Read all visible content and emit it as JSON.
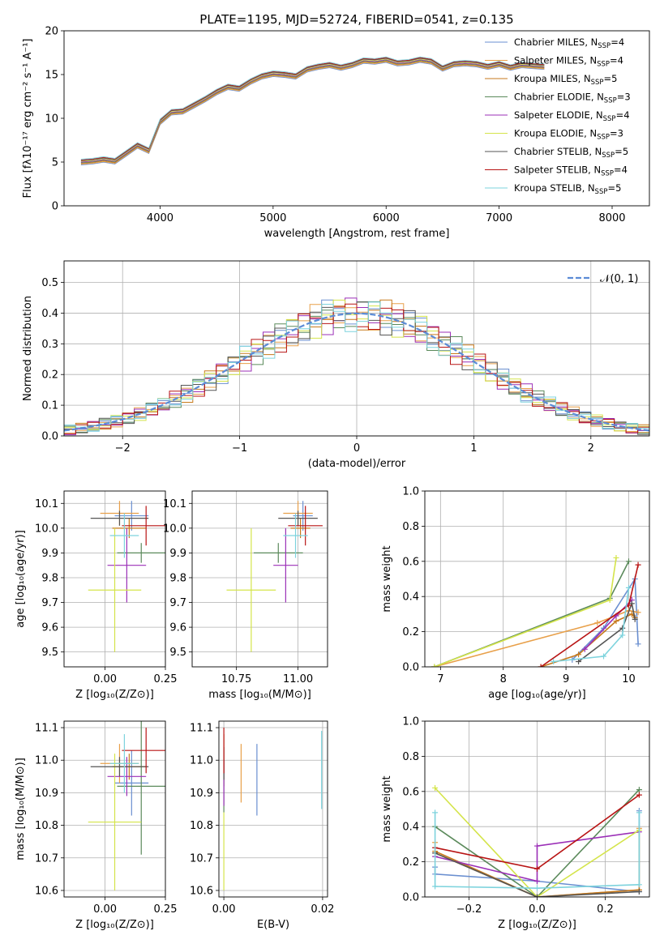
{
  "figure": {
    "title": "PLATE=1195, MJD=52724, FIBERID=0541, z=0.135"
  },
  "series_styles": [
    {
      "name": "Chabrier MILES",
      "nssp": "4",
      "color": "#6a8fd0"
    },
    {
      "name": "Salpeter MILES",
      "nssp": "4",
      "color": "#e8a04a"
    },
    {
      "name": "Kroupa MILES",
      "nssp": "5",
      "color": "#c77a1c"
    },
    {
      "name": "Chabrier ELODIE",
      "nssp": "3",
      "color": "#5b8a5b"
    },
    {
      "name": "Salpeter ELODIE",
      "nssp": "4",
      "color": "#9b2fb7"
    },
    {
      "name": "Kroupa ELODIE",
      "nssp": "3",
      "color": "#d4e44a"
    },
    {
      "name": "Chabrier STELIB",
      "nssp": "5",
      "color": "#555555"
    },
    {
      "name": "Salpeter STELIB",
      "nssp": "4",
      "color": "#b81414"
    },
    {
      "name": "Kroupa STELIB",
      "nssp": "5",
      "color": "#7dd3dd"
    }
  ],
  "legend_sub": "SSP",
  "legend_prefix": "N",
  "legend_eq": "=",
  "chart_data": [
    {
      "id": "spectrum",
      "type": "line",
      "xlabel": "wavelength [Angstrom, rest frame]",
      "ylabel": "Flux [fλ10⁻¹⁷ erg cm⁻² s⁻¹ A⁻¹]",
      "xlim": [
        3150,
        8330
      ],
      "ylim": [
        0,
        20
      ],
      "xticks": [
        "4000",
        "5000",
        "6000",
        "7000",
        "8000"
      ],
      "yticks": [
        "0",
        "5",
        "10",
        "15",
        "20"
      ],
      "legend": "upper right",
      "data_color": "#7f7f7f",
      "data_x": [
        3300,
        3400,
        3500,
        3600,
        3700,
        3800,
        3900,
        4000,
        4100,
        4200,
        4300,
        4400,
        4500,
        4600,
        4700,
        4800,
        4900,
        5000,
        5100,
        5200,
        5300,
        5400,
        5500,
        5600,
        5700,
        5800,
        5900,
        6000,
        6100,
        6200,
        6300,
        6400,
        6500,
        6600,
        6700,
        6800,
        6900,
        7000,
        7100,
        7200,
        7300,
        7400
      ],
      "data_y": [
        5.0,
        5.2,
        5.4,
        5.2,
        6.3,
        7.2,
        6.5,
        9.8,
        10.9,
        11.0,
        11.7,
        12.4,
        13.2,
        13.8,
        13.6,
        14.4,
        15.0,
        15.3,
        15.2,
        15.0,
        15.8,
        16.1,
        16.3,
        16.0,
        16.3,
        16.8,
        16.7,
        16.9,
        16.5,
        16.6,
        16.9,
        16.7,
        15.9,
        16.4,
        16.5,
        16.4,
        16.1,
        16.4,
        16.0,
        16.3,
        16.2,
        16.1
      ],
      "model_x": [
        3300,
        3400,
        3500,
        3600,
        3700,
        3800,
        3900,
        4000,
        4100,
        4200,
        4300,
        4400,
        4500,
        4600,
        4700,
        4800,
        4900,
        5000,
        5100,
        5200,
        5300,
        5400,
        5500,
        5600,
        5700,
        5800,
        5900,
        6000,
        6100,
        6200,
        6300,
        6400,
        6500,
        6600,
        6700,
        6800,
        6900,
        7000,
        7100,
        7200,
        7300,
        7400
      ],
      "model_y": [
        5.0,
        5.1,
        5.3,
        5.1,
        6.0,
        6.9,
        6.3,
        9.6,
        10.7,
        10.8,
        11.5,
        12.2,
        13.0,
        13.6,
        13.4,
        14.2,
        14.8,
        15.1,
        15.0,
        14.8,
        15.6,
        15.9,
        16.1,
        15.8,
        16.1,
        16.6,
        16.5,
        16.7,
        16.3,
        16.4,
        16.7,
        16.5,
        15.7,
        16.2,
        16.3,
        16.2,
        15.9,
        16.2,
        15.8,
        16.1,
        16.0,
        15.9
      ]
    },
    {
      "id": "residuals",
      "type": "step",
      "xlabel": "(data-model)/error",
      "ylabel": "Normed distribution",
      "xlim": [
        -2.5,
        2.5
      ],
      "ylim": [
        0,
        0.57
      ],
      "xticks": [
        "−2",
        "−1",
        "0",
        "1",
        "2"
      ],
      "yticks": [
        "0.0",
        "0.1",
        "0.2",
        "0.3",
        "0.4",
        "0.5"
      ],
      "legend_label": "𝒩(0, 1)",
      "bin_edges_start": -2.5,
      "bin_width": 0.1
    },
    {
      "id": "age_vs_z",
      "type": "errorbar",
      "xlabel": "Z [log₁₀(Z/Z⊙)]",
      "ylabel": "age [log₁₀(age/yr)]",
      "xlim": [
        -0.17,
        0.25
      ],
      "ylim": [
        9.44,
        10.15
      ],
      "xticks": [
        "0.00",
        "0.25"
      ],
      "yticks": [
        "9.5",
        "9.6",
        "9.7",
        "9.8",
        "9.9",
        "10.0",
        "10.1"
      ],
      "points": [
        {
          "x": 0.11,
          "y": 10.05,
          "xe": 0.07,
          "ye": 0.06
        },
        {
          "x": 0.06,
          "y": 10.06,
          "xe": 0.08,
          "ye": 0.05
        },
        {
          "x": 0.1,
          "y": 10.0,
          "xe": 0.07,
          "ye": 0.04
        },
        {
          "x": 0.15,
          "y": 9.9,
          "xe": 0.1,
          "ye": 0.04
        },
        {
          "x": 0.09,
          "y": 9.85,
          "xe": 0.08,
          "ye": 0.15
        },
        {
          "x": 0.04,
          "y": 9.75,
          "xe": 0.11,
          "ye": 0.25
        },
        {
          "x": 0.06,
          "y": 10.04,
          "xe": 0.12,
          "ye": 0.03
        },
        {
          "x": 0.17,
          "y": 10.01,
          "xe": 0.1,
          "ye": 0.08
        },
        {
          "x": 0.08,
          "y": 9.97,
          "xe": 0.06,
          "ye": 0.09
        }
      ]
    },
    {
      "id": "age_vs_mass",
      "type": "errorbar",
      "xlabel": "mass [log₁₀(M/M⊙)]",
      "ylabel": "",
      "xlim": [
        10.57,
        11.12
      ],
      "ylim": [
        9.44,
        10.15
      ],
      "xticks": [
        "10.75",
        "11.00"
      ],
      "yticks": [
        "9.5",
        "9.6",
        "9.7",
        "9.8",
        "9.9",
        "10.0",
        "10.1"
      ],
      "points": [
        {
          "x": 11.02,
          "y": 10.05,
          "xe": 0.04,
          "ye": 0.06
        },
        {
          "x": 11.0,
          "y": 10.06,
          "xe": 0.06,
          "ye": 0.05
        },
        {
          "x": 11.01,
          "y": 10.0,
          "xe": 0.04,
          "ye": 0.04
        },
        {
          "x": 10.92,
          "y": 9.9,
          "xe": 0.1,
          "ye": 0.04
        },
        {
          "x": 10.95,
          "y": 9.85,
          "xe": 0.05,
          "ye": 0.15
        },
        {
          "x": 10.81,
          "y": 9.75,
          "xe": 0.1,
          "ye": 0.25
        },
        {
          "x": 11.0,
          "y": 10.04,
          "xe": 0.08,
          "ye": 0.03
        },
        {
          "x": 11.03,
          "y": 10.01,
          "xe": 0.07,
          "ye": 0.08
        },
        {
          "x": 10.99,
          "y": 9.97,
          "xe": 0.05,
          "ye": 0.09
        }
      ]
    },
    {
      "id": "massweight_vs_age",
      "type": "line",
      "xlabel": "age [log₁₀(age/yr)]",
      "ylabel": "mass weight",
      "xlim": [
        6.75,
        10.33
      ],
      "ylim": [
        0,
        1
      ],
      "xticks": [
        "7",
        "8",
        "9",
        "10"
      ],
      "yticks": [
        "0.0",
        "0.2",
        "0.4",
        "0.6",
        "0.8",
        "1.0"
      ],
      "series": [
        {
          "x": [
            9.1,
            9.6,
            10.1,
            10.15
          ],
          "y": [
            0.04,
            0.22,
            0.5,
            0.13
          ]
        },
        {
          "x": [
            6.9,
            9.5,
            10.0,
            10.15
          ],
          "y": [
            0.0,
            0.25,
            0.32,
            0.31
          ]
        },
        {
          "x": [
            8.6,
            9.2,
            9.8,
            10.05,
            10.1
          ],
          "y": [
            0.0,
            0.07,
            0.26,
            0.3,
            0.28
          ]
        },
        {
          "x": [
            6.9,
            9.7,
            10.0
          ],
          "y": [
            0.0,
            0.39,
            0.6
          ]
        },
        {
          "x": [
            9.3,
            9.8,
            10.05
          ],
          "y": [
            0.1,
            0.29,
            0.38
          ]
        },
        {
          "x": [
            6.9,
            9.7,
            9.8
          ],
          "y": [
            0.0,
            0.38,
            0.62
          ]
        },
        {
          "x": [
            9.2,
            9.9,
            10.05,
            10.1
          ],
          "y": [
            0.03,
            0.22,
            0.36,
            0.27
          ]
        },
        {
          "x": [
            8.6,
            10.0,
            10.15
          ],
          "y": [
            0.0,
            0.35,
            0.58
          ]
        },
        {
          "x": [
            8.8,
            9.6,
            9.9,
            10.0
          ],
          "y": [
            0.03,
            0.06,
            0.18,
            0.45
          ]
        }
      ]
    },
    {
      "id": "mass_vs_z",
      "type": "errorbar",
      "xlabel": "Z [log₁₀(Z/Z⊙)]",
      "ylabel": "mass [log₁₀(M/M⊙)]",
      "xlim": [
        -0.17,
        0.25
      ],
      "ylim": [
        10.58,
        11.12
      ],
      "xticks": [
        "0.00",
        "0.25"
      ],
      "yticks": [
        "10.6",
        "10.7",
        "10.8",
        "10.9",
        "11.0",
        "11.1"
      ],
      "points": [
        {
          "x": 0.11,
          "y": 10.93,
          "xe": 0.07,
          "ye": 0.1
        },
        {
          "x": 0.06,
          "y": 10.99,
          "xe": 0.08,
          "ye": 0.06
        },
        {
          "x": 0.1,
          "y": 10.98,
          "xe": 0.07,
          "ye": 0.04
        },
        {
          "x": 0.15,
          "y": 10.92,
          "xe": 0.1,
          "ye": 0.21
        },
        {
          "x": 0.09,
          "y": 10.95,
          "xe": 0.08,
          "ye": 0.06
        },
        {
          "x": 0.04,
          "y": 10.81,
          "xe": 0.11,
          "ye": 0.21
        },
        {
          "x": 0.06,
          "y": 10.98,
          "xe": 0.12,
          "ye": 0.03
        },
        {
          "x": 0.17,
          "y": 11.03,
          "xe": 0.1,
          "ye": 0.07
        },
        {
          "x": 0.08,
          "y": 10.99,
          "xe": 0.06,
          "ye": 0.09
        }
      ]
    },
    {
      "id": "mass_vs_ebv",
      "type": "errorbar",
      "xlabel": "E(B-V)",
      "ylabel": "",
      "xlim": [
        -0.001,
        0.021
      ],
      "ylim": [
        10.58,
        11.12
      ],
      "xticks": [
        "0.00",
        "0.02"
      ],
      "yticks": [
        "10.6",
        "10.7",
        "10.8",
        "10.9",
        "11.0",
        "11.1"
      ],
      "points": [
        {
          "x": 0.0067,
          "y": 10.94,
          "xe": 0,
          "ye": 0.11
        },
        {
          "x": 0.0035,
          "y": 10.96,
          "xe": 0,
          "ye": 0.09
        },
        {
          "x": 0.0,
          "y": 11.0,
          "xe": 0,
          "ye": 0.08
        },
        {
          "x": 0.0,
          "y": 10.92,
          "xe": 0,
          "ye": 0.08
        },
        {
          "x": 0.0,
          "y": 10.93,
          "xe": 0,
          "ye": 0.07
        },
        {
          "x": 0.0,
          "y": 10.72,
          "xe": 0,
          "ye": 0.12
        },
        {
          "x": 0.0,
          "y": 10.99,
          "xe": 0,
          "ye": 0.05
        },
        {
          "x": 0.0,
          "y": 11.03,
          "xe": 0,
          "ye": 0.07
        },
        {
          "x": 0.0198,
          "y": 10.97,
          "xe": 0,
          "ye": 0.12
        }
      ]
    },
    {
      "id": "massweight_vs_z",
      "type": "line",
      "xlabel": "Z [log₁₀(Z/Z⊙)]",
      "ylabel": "mass weight",
      "xlim": [
        -0.33,
        0.33
      ],
      "ylim": [
        0,
        1
      ],
      "xticks": [
        "−0.2",
        "0.0",
        "0.2"
      ],
      "yticks": [
        "0.0",
        "0.2",
        "0.4",
        "0.6",
        "0.8",
        "1.0"
      ],
      "series": [
        {
          "x": [
            -0.3,
            -0.3,
            0.0,
            0.3,
            0.3
          ],
          "y": [
            0.17,
            0.13,
            0.09,
            0.03,
            0.49
          ]
        },
        {
          "x": [
            -0.3,
            -0.3,
            0.0,
            0.3,
            0.3
          ],
          "y": [
            0.31,
            0.25,
            0.0,
            0.04,
            0.39
          ]
        },
        {
          "x": [
            -0.3,
            0.0,
            0.3
          ],
          "y": [
            0.26,
            0.0,
            0.04
          ]
        },
        {
          "x": [
            -0.3,
            0.0,
            0.3
          ],
          "y": [
            0.4,
            0.0,
            0.61
          ]
        },
        {
          "x": [
            -0.3,
            0.0,
            0.0,
            0.3
          ],
          "y": [
            0.23,
            0.09,
            0.29,
            0.37
          ]
        },
        {
          "x": [
            -0.3,
            0.0,
            0.3
          ],
          "y": [
            0.62,
            0.0,
            0.38
          ]
        },
        {
          "x": [
            -0.3,
            0.0,
            0.3
          ],
          "y": [
            0.25,
            0.0,
            0.03
          ]
        },
        {
          "x": [
            -0.3,
            0.0,
            0.3
          ],
          "y": [
            0.28,
            0.16,
            0.58
          ]
        },
        {
          "x": [
            -0.3,
            -0.3,
            0.0,
            0.3,
            0.3
          ],
          "y": [
            0.48,
            0.06,
            0.05,
            0.07,
            0.48
          ]
        }
      ]
    }
  ]
}
